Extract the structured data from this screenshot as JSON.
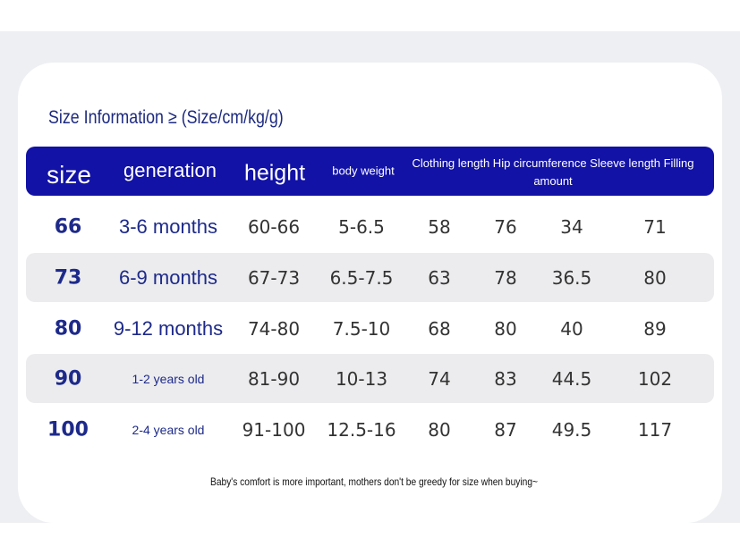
{
  "title": "Size Information ≥ (Size/cm/kg/g)",
  "table": {
    "headers": [
      "size",
      "generation",
      "height",
      "body weight",
      "Clothing length Hip circumference Sleeve length Filling amount"
    ],
    "rows": [
      [
        "66",
        "3-6 months",
        "60-66",
        "5-6.5",
        "58",
        "76",
        "34",
        "71"
      ],
      [
        "73",
        "6-9 months",
        "67-73",
        "6.5-7.5",
        "63",
        "78",
        "36.5",
        "80"
      ],
      [
        "80",
        "9-12 months",
        "74-80",
        "7.5-10",
        "68",
        "80",
        "40",
        "89"
      ],
      [
        "90",
        "1-2 years old",
        "81-90",
        "10-13",
        "74",
        "83",
        "44.5",
        "102"
      ],
      [
        "100",
        "2-4 years old",
        "91-100",
        "12.5-16",
        "80",
        "87",
        "49.5",
        "117"
      ]
    ]
  },
  "footer": "Baby's comfort is more important, mothers don't be greedy for size when buying~"
}
